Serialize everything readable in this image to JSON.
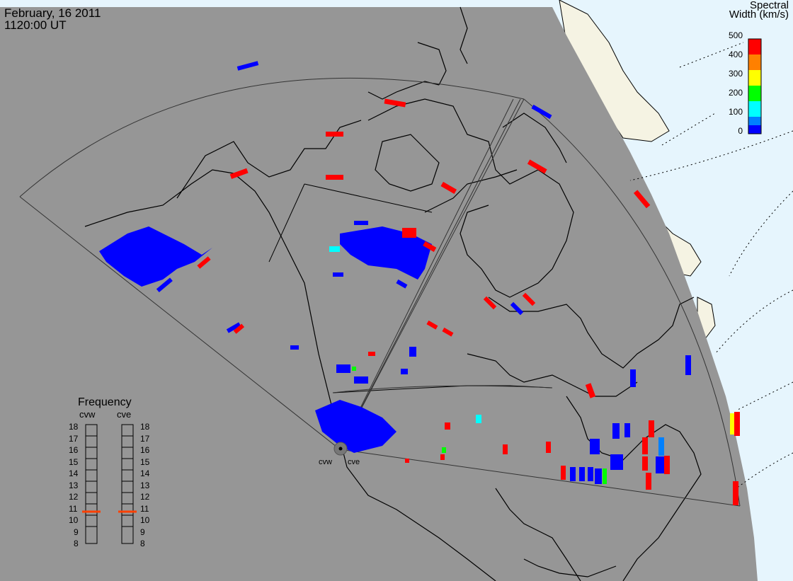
{
  "header": {
    "date": "February, 16 2011",
    "time": "1120:00 UT"
  },
  "colorbar": {
    "title_line1": "Spectral",
    "title_line2": "Width (km/s)",
    "ticks": [
      "500",
      "400",
      "300",
      "200",
      "100",
      "0"
    ],
    "colors": [
      "#ff0000",
      "#ff8000",
      "#ffff00",
      "#00ff00",
      "#00ffff",
      "#0080ff",
      "#0000ff"
    ]
  },
  "frequency_panel": {
    "title": "Frequency",
    "radars": [
      "cvw",
      "cve"
    ],
    "scale": [
      "18",
      "17",
      "16",
      "15",
      "14",
      "13",
      "12",
      "11",
      "10",
      "9",
      "8"
    ],
    "marker_value": 11,
    "marker_color": "#ff4000"
  },
  "sites": {
    "left": "cvw",
    "right": "cve"
  },
  "colors": {
    "land": "#969696",
    "ocean_light": "#e6f5fd",
    "land_light": "#f5f3e3",
    "scatter_low": "#0000ff",
    "scatter_high": "#ff0000"
  }
}
